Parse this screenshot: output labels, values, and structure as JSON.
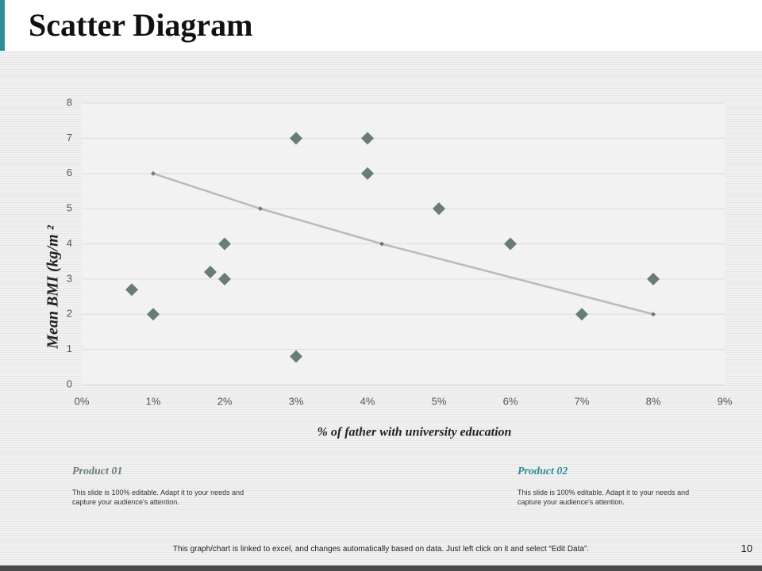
{
  "slide": {
    "title": "Scatter Diagram",
    "page_number": "10",
    "footer": "This graph/chart is linked to excel, and changes automatically based on data. Just left click on it and select “Edit Data”.",
    "products": [
      {
        "title": "Product 01",
        "text": "This slide is 100% editable.  Adapt it to your needs and capture your audience's attention."
      },
      {
        "title": "Product 02",
        "text": "This slide is 100% editable.  Adapt it to your needs and capture your audience's attention."
      }
    ]
  },
  "chart_data": {
    "type": "scatter",
    "x_label": "% of father with university education",
    "y_label": "Mean BMI  (kg/m ²",
    "xlim": [
      0,
      9
    ],
    "xticks": [
      {
        "value": 0,
        "label": "0%"
      },
      {
        "value": 1,
        "label": "1%"
      },
      {
        "value": 2,
        "label": "2%"
      },
      {
        "value": 3,
        "label": "3%"
      },
      {
        "value": 4,
        "label": "4%"
      },
      {
        "value": 5,
        "label": "5%"
      },
      {
        "value": 6,
        "label": "6%"
      },
      {
        "value": 7,
        "label": "7%"
      },
      {
        "value": 8,
        "label": "8%"
      },
      {
        "value": 9,
        "label": "9%"
      }
    ],
    "ylim": [
      0,
      8
    ],
    "yticks": [
      0,
      1,
      2,
      3,
      4,
      5,
      6,
      7,
      8
    ],
    "grid": true,
    "series": [
      {
        "color": "#6a7c76",
        "marker": "diamond",
        "line": false,
        "x": [
          0.7,
          1,
          1.8,
          2,
          2,
          3,
          3,
          4,
          4,
          5,
          6,
          7,
          8
        ],
        "values": [
          2.7,
          2,
          3.2,
          4,
          3,
          7,
          0.8,
          7,
          6,
          5,
          4,
          2,
          3
        ]
      },
      {
        "color": "#6a7c76",
        "line_color": "#b9bcb2",
        "marker": "small-diamond",
        "line": true,
        "x": [
          1,
          2.5,
          4.2,
          8
        ],
        "values": [
          6,
          5,
          4,
          2
        ]
      }
    ]
  }
}
